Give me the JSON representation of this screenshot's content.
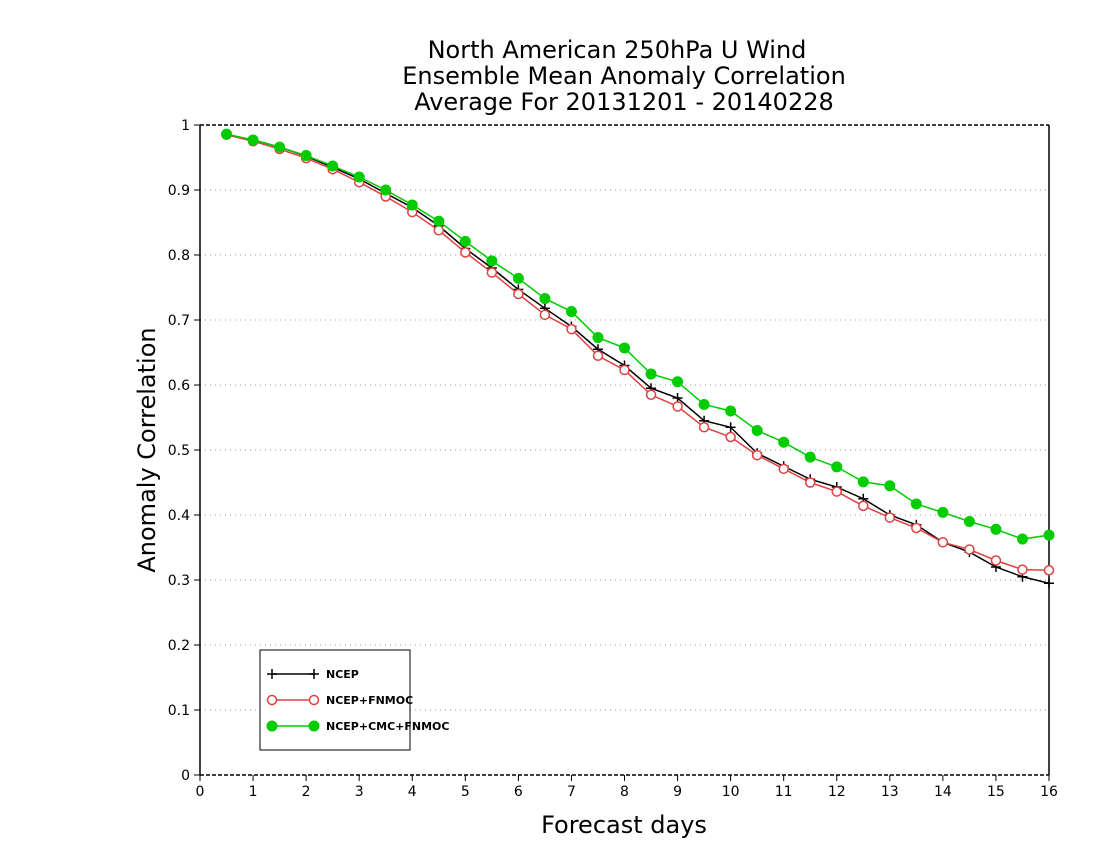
{
  "chart_data": {
    "type": "line",
    "title_lines": [
      "North American 250hPa U Wind",
      "Ensemble Mean Anomaly Correlation",
      "Average For 20131201 - 20140228"
    ],
    "xlabel": "Forecast days",
    "ylabel": "Anomaly Correlation",
    "xlim": [
      0,
      16
    ],
    "ylim": [
      0,
      1
    ],
    "x_ticks": [
      "0",
      "1",
      "2",
      "3",
      "4",
      "5",
      "6",
      "7",
      "8",
      "9",
      "10",
      "11",
      "12",
      "13",
      "14",
      "15",
      "16"
    ],
    "y_ticks": [
      "0",
      "0.1",
      "0.2",
      "0.3",
      "0.4",
      "0.5",
      "0.6",
      "0.7",
      "0.8",
      "0.9",
      "1"
    ],
    "grid": "horizontal-dotted",
    "legend_position": "bottom-left",
    "x": [
      0.5,
      1,
      1.5,
      2,
      2.5,
      3,
      3.5,
      4,
      4.5,
      5,
      5.5,
      6,
      6.5,
      7,
      7.5,
      8,
      8.5,
      9,
      9.5,
      10,
      10.5,
      11,
      11.5,
      12,
      12.5,
      13,
      13.5,
      14,
      14.5,
      15,
      15.5,
      16
    ],
    "series": [
      {
        "name": "NCEP",
        "color": "#000000",
        "marker": "plus",
        "values": [
          0.985,
          0.977,
          0.966,
          0.952,
          0.935,
          0.917,
          0.895,
          0.873,
          0.845,
          0.81,
          0.78,
          0.747,
          0.718,
          0.69,
          0.655,
          0.63,
          0.595,
          0.58,
          0.545,
          0.535,
          0.495,
          0.475,
          0.455,
          0.443,
          0.425,
          0.4,
          0.385,
          0.358,
          0.343,
          0.32,
          0.305,
          0.295
        ]
      },
      {
        "name": "NCEP+FNMOC",
        "color": "#e04040",
        "marker": "open-circle",
        "values": [
          0.985,
          0.975,
          0.963,
          0.949,
          0.932,
          0.912,
          0.89,
          0.866,
          0.838,
          0.804,
          0.773,
          0.74,
          0.708,
          0.686,
          0.645,
          0.623,
          0.585,
          0.567,
          0.535,
          0.52,
          0.492,
          0.471,
          0.45,
          0.436,
          0.414,
          0.396,
          0.38,
          0.358,
          0.347,
          0.33,
          0.316,
          0.315
        ]
      },
      {
        "name": "NCEP+CMC+FNMOC",
        "color": "#00cc00",
        "marker": "filled-circle",
        "values": [
          0.986,
          0.977,
          0.966,
          0.953,
          0.937,
          0.92,
          0.9,
          0.877,
          0.852,
          0.821,
          0.791,
          0.764,
          0.733,
          0.713,
          0.673,
          0.657,
          0.617,
          0.605,
          0.57,
          0.56,
          0.53,
          0.512,
          0.489,
          0.474,
          0.451,
          0.445,
          0.417,
          0.404,
          0.39,
          0.378,
          0.363,
          0.369
        ]
      }
    ]
  }
}
